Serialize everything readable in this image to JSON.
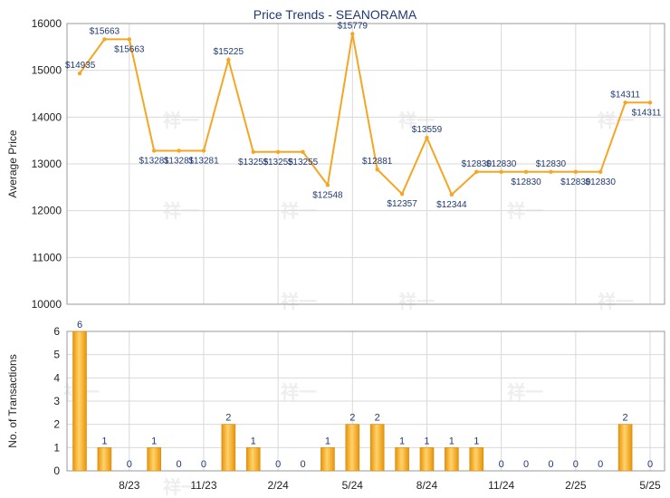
{
  "chart_data": [
    {
      "type": "line",
      "title": "Price Trends - SEANORAMA",
      "ylabel": "Average Price",
      "ylim": [
        10000,
        16000
      ],
      "yticks": [
        10000,
        11000,
        12000,
        13000,
        14000,
        15000,
        16000
      ],
      "grid": true,
      "line_color": "#f5a623",
      "x_index_range": [
        0,
        23.5
      ],
      "labels": [
        "$14935",
        "$15663",
        "$15663",
        "$13281",
        "$13281",
        "$13281",
        "$15225",
        "$13255",
        "$13255",
        "$13255",
        "$12548",
        "$15779",
        "$12881",
        "$12357",
        "$13559",
        "$12344",
        "$12830",
        "$12830",
        "$12830",
        "$12830",
        "$12830",
        "$12830",
        "$14311",
        "$14311"
      ],
      "values": [
        14935,
        15663,
        15663,
        13281,
        13281,
        13281,
        15225,
        13255,
        13255,
        13255,
        12548,
        15779,
        12881,
        12357,
        13559,
        12344,
        12830,
        12830,
        12830,
        12830,
        12830,
        12830,
        14311,
        14311
      ]
    },
    {
      "type": "bar",
      "ylabel": "No. of Transactions",
      "ylim": [
        0,
        6
      ],
      "yticks": [
        0,
        1,
        2,
        3,
        4,
        5,
        6
      ],
      "grid": true,
      "bar_color": "#f5a623",
      "x_index_range": [
        0,
        23.5
      ],
      "values": [
        6,
        1,
        0,
        1,
        0,
        0,
        2,
        1,
        0,
        0,
        1,
        2,
        2,
        1,
        1,
        1,
        1,
        0,
        0,
        0,
        0,
        0,
        2,
        0
      ],
      "xticks": [
        {
          "i": 2,
          "label": "8/23"
        },
        {
          "i": 5,
          "label": "11/23"
        },
        {
          "i": 8,
          "label": "2/24"
        },
        {
          "i": 11,
          "label": "5/24"
        },
        {
          "i": 14,
          "label": "8/24"
        },
        {
          "i": 17,
          "label": "11/24"
        },
        {
          "i": 20,
          "label": "2/25"
        },
        {
          "i": 23,
          "label": "5/25"
        }
      ]
    }
  ]
}
